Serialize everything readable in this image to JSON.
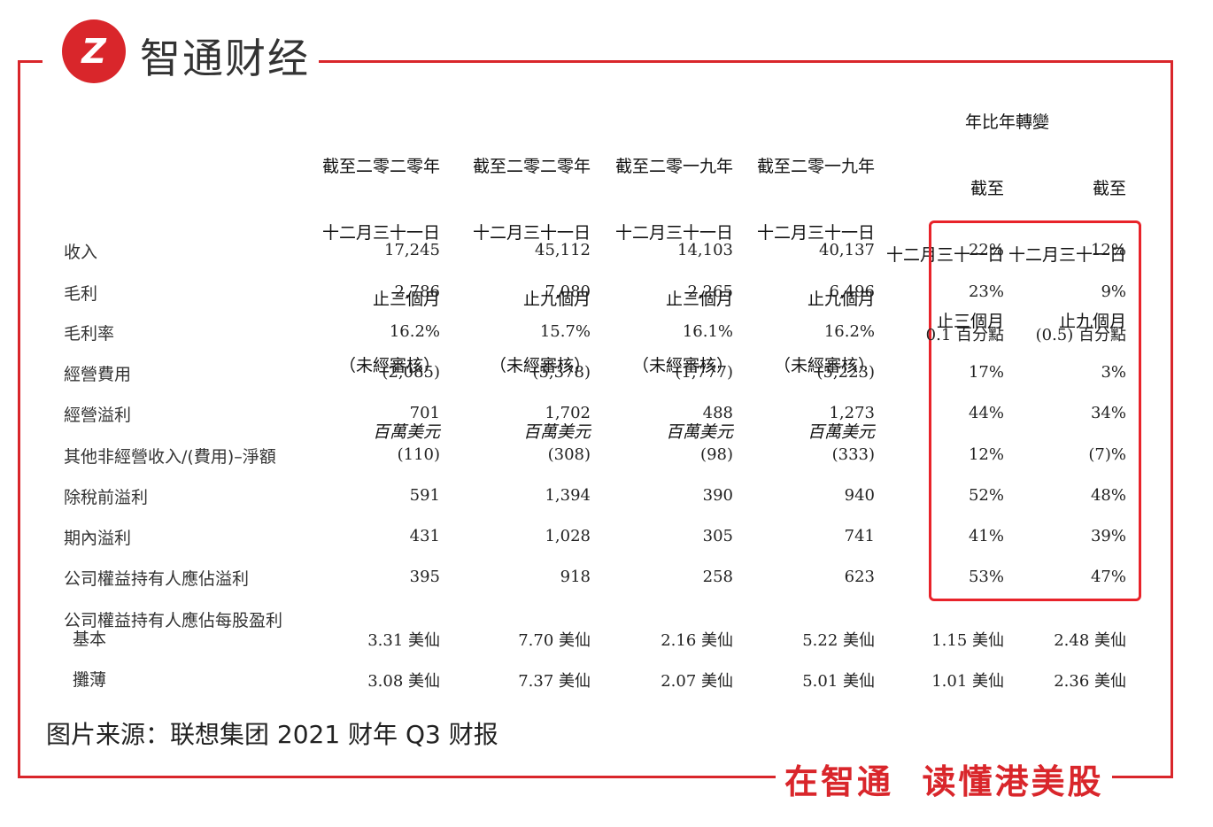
{
  "brand": {
    "logo_glyph": "Z",
    "name": "智通财经",
    "accent": "#d9262b"
  },
  "table": {
    "headers": [
      {
        "lines": [
          "截至二零二零年",
          "十二月三十一日",
          "止三個月",
          "（未經審核）"
        ],
        "unit": "百萬美元"
      },
      {
        "lines": [
          "截至二零二零年",
          "十二月三十一日",
          "止九個月",
          "（未經審核）"
        ],
        "unit": "百萬美元"
      },
      {
        "lines": [
          "截至二零一九年",
          "十二月三十一日",
          "止三個月",
          "（未經審核）"
        ],
        "unit": "百萬美元"
      },
      {
        "lines": [
          "截至二零一九年",
          "十二月三十一日",
          "止九個月",
          "（未經審核）"
        ],
        "unit": "百萬美元"
      }
    ],
    "yoy_header": {
      "title": "年比年轉變",
      "col1": [
        "截至",
        "十二月三十一日",
        "止三個月"
      ],
      "col2": [
        "截至",
        "十二月三十一日",
        "止九個月"
      ]
    },
    "rows": [
      {
        "label": "收入",
        "values": [
          "17,245",
          "45,112",
          "14,103",
          "40,137",
          "22%",
          "12%"
        ]
      },
      {
        "label": "毛利",
        "values": [
          "2,786",
          "7,080",
          "2,265",
          "6,496",
          "23%",
          "9%"
        ]
      },
      {
        "label": "毛利率",
        "values": [
          "16.2%",
          "15.7%",
          "16.1%",
          "16.2%",
          "0.1 百分點",
          "(0.5) 百分點"
        ]
      },
      {
        "label": "經營費用",
        "values": [
          "(2,085)",
          "(5,378)",
          "(1,777)",
          "(5,223)",
          "17%",
          "3%"
        ]
      },
      {
        "label": "經營溢利",
        "values": [
          "701",
          "1,702",
          "488",
          "1,273",
          "44%",
          "34%"
        ]
      },
      {
        "label": "其他非經營收入/(費用)–淨額",
        "values": [
          "(110)",
          "(308)",
          "(98)",
          "(333)",
          "12%",
          "(7)%"
        ]
      },
      {
        "label": "除稅前溢利",
        "values": [
          "591",
          "1,394",
          "390",
          "940",
          "52%",
          "48%"
        ]
      },
      {
        "label": "期內溢利",
        "values": [
          "431",
          "1,028",
          "305",
          "741",
          "41%",
          "39%"
        ]
      },
      {
        "label": "公司權益持有人應佔溢利",
        "values": [
          "395",
          "918",
          "258",
          "623",
          "53%",
          "47%"
        ]
      }
    ],
    "eps_title": "公司權益持有人應佔每股盈利",
    "eps_rows": [
      {
        "label": "基本",
        "values": [
          "3.31 美仙",
          "7.70 美仙",
          "2.16 美仙",
          "5.22 美仙",
          "1.15 美仙",
          "2.48 美仙"
        ]
      },
      {
        "label": "攤薄",
        "values": [
          "3.08 美仙",
          "7.37 美仙",
          "2.07 美仙",
          "5.01 美仙",
          "1.01 美仙",
          "2.36 美仙"
        ]
      }
    ]
  },
  "caption": "图片来源：联想集团 2021 财年 Q3 财报",
  "slogan": "在智通  读懂港美股"
}
